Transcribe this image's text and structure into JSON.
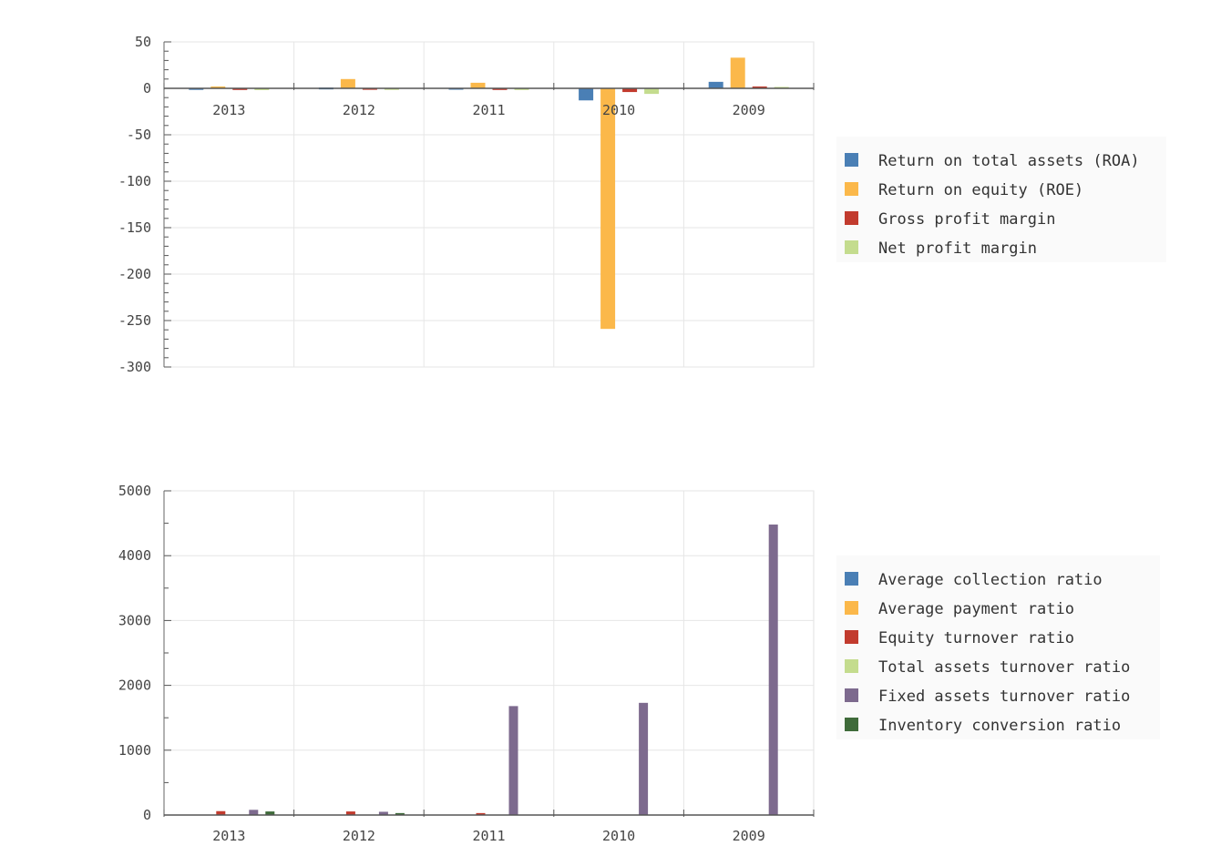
{
  "chart_data": [
    {
      "type": "bar",
      "categories": [
        "2013",
        "2012",
        "2011",
        "2010",
        "2009"
      ],
      "ylim": [
        -300,
        50
      ],
      "yticks": [
        50,
        0,
        -50,
        -100,
        -150,
        -200,
        -250,
        -300
      ],
      "grid": true,
      "legend_position": "right",
      "series": [
        {
          "name": "Return on total assets (ROA)",
          "color": "#4a7fb5",
          "values": [
            0.3,
            0.8,
            0.5,
            -13,
            7
          ]
        },
        {
          "name": "Return on equity (ROE)",
          "color": "#fbb84a",
          "values": [
            2,
            10,
            6,
            -259,
            33
          ]
        },
        {
          "name": "Gross profit margin",
          "color": "#c23b2e",
          "values": [
            0.2,
            0.4,
            0.2,
            -4,
            2
          ]
        },
        {
          "name": "Net profit margin",
          "color": "#c4dc8e",
          "values": [
            0.1,
            0.3,
            0.2,
            -6,
            1.5
          ]
        }
      ]
    },
    {
      "type": "bar",
      "categories": [
        "2013",
        "2012",
        "2011",
        "2010",
        "2009"
      ],
      "ylim": [
        0,
        5000
      ],
      "yticks": [
        5000,
        4000,
        3000,
        2000,
        1000,
        0
      ],
      "grid": true,
      "legend_position": "right",
      "series": [
        {
          "name": "Average collection ratio",
          "color": "#4a7fb5",
          "values": [
            0,
            0,
            0,
            0,
            0
          ]
        },
        {
          "name": "Average payment ratio",
          "color": "#fbb84a",
          "values": [
            0,
            0,
            0,
            0,
            0
          ]
        },
        {
          "name": "Equity turnover ratio",
          "color": "#c23b2e",
          "values": [
            60,
            55,
            30,
            0,
            0
          ]
        },
        {
          "name": "Total assets turnover ratio",
          "color": "#c4dc8e",
          "values": [
            0,
            0,
            0,
            0,
            0
          ]
        },
        {
          "name": "Fixed assets turnover ratio",
          "color": "#7d6a8e",
          "values": [
            80,
            50,
            1680,
            1730,
            4480
          ]
        },
        {
          "name": "Inventory conversion ratio",
          "color": "#3f6b3a",
          "values": [
            55,
            30,
            0,
            0,
            0
          ]
        }
      ]
    }
  ]
}
